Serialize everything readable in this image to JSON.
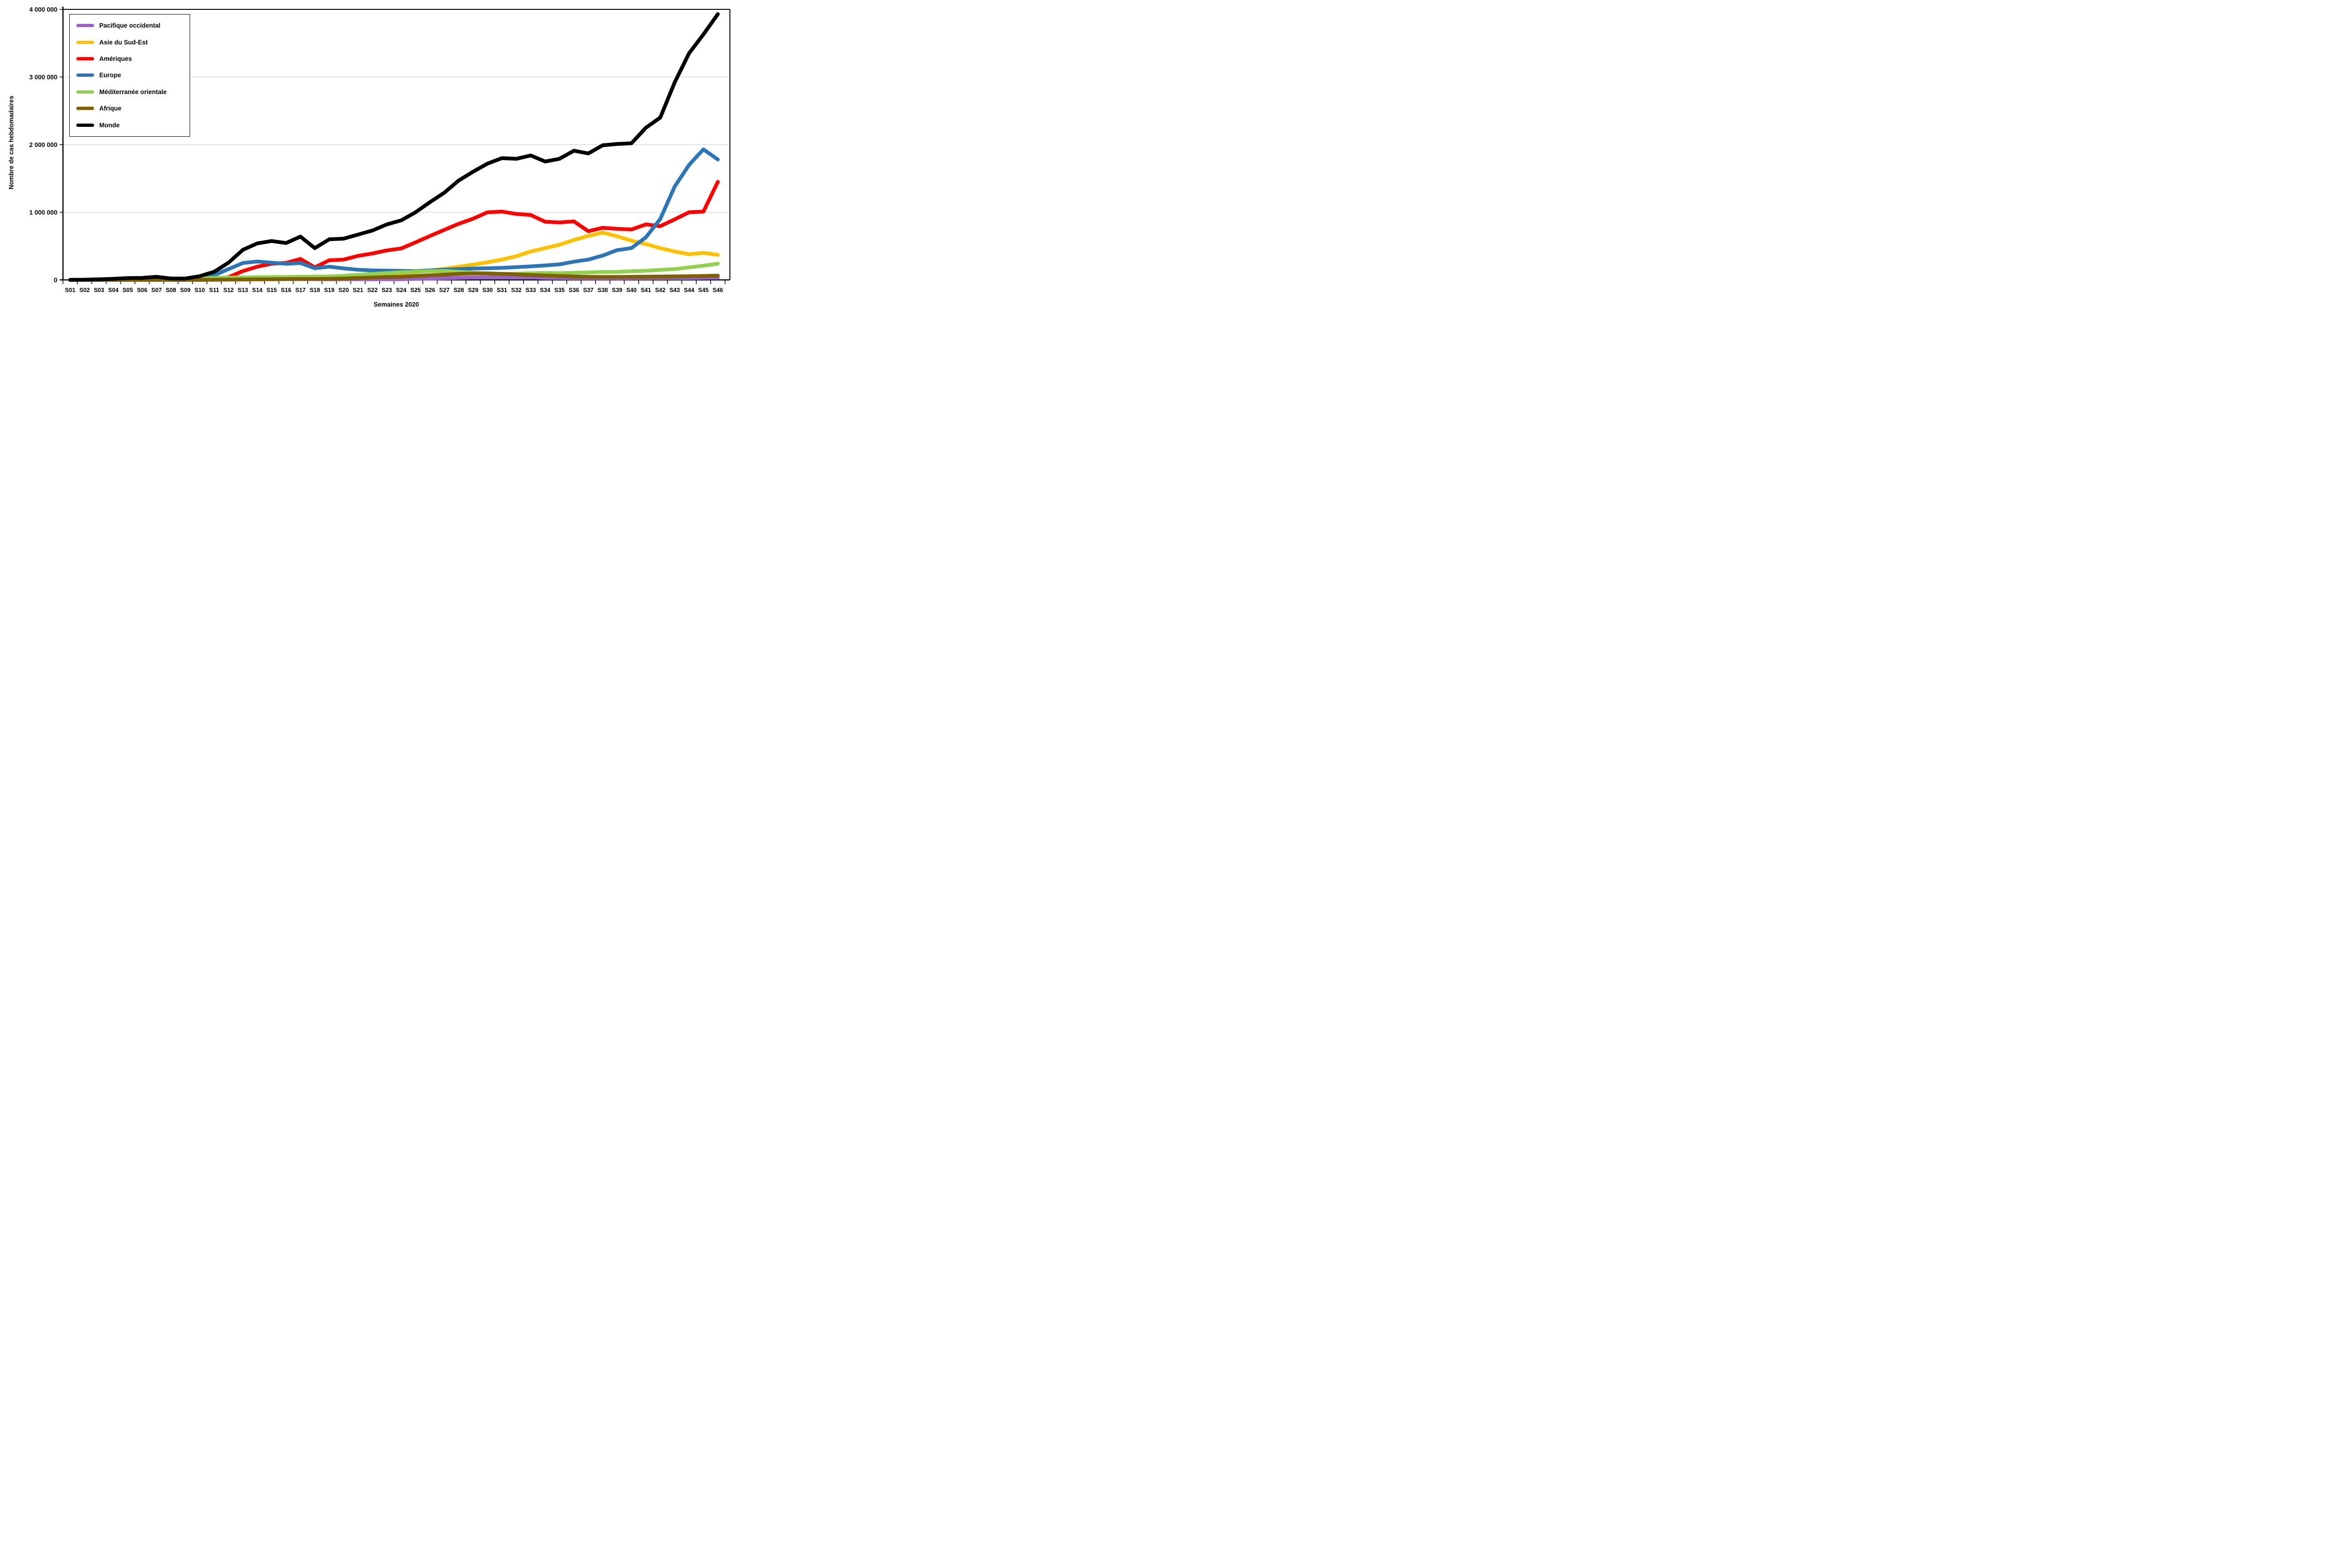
{
  "chart_data": {
    "type": "line",
    "title": "",
    "xlabel": "Semaines 2020",
    "ylabel": "Nombre de cas hebdomadaires",
    "x_categories": [
      "S01",
      "S02",
      "S03",
      "S04",
      "S05",
      "S06",
      "S07",
      "S08",
      "S09",
      "S10",
      "S11",
      "S12",
      "S13",
      "S14",
      "S15",
      "S16",
      "S17",
      "S18",
      "S19",
      "S20",
      "S21",
      "S22",
      "S23",
      "S24",
      "S25",
      "S26",
      "S27",
      "S28",
      "S29",
      "S30",
      "S31",
      "S32",
      "S33",
      "S34",
      "S35",
      "S36",
      "S37",
      "S38",
      "S39",
      "S40",
      "S41",
      "S42",
      "S43",
      "S44",
      "S45",
      "S46"
    ],
    "ylim": [
      0,
      4000000
    ],
    "yticks": [
      {
        "value": 0,
        "label": "0"
      },
      {
        "value": 1000000,
        "label": "1 000 000"
      },
      {
        "value": 2000000,
        "label": "2 000 000"
      },
      {
        "value": 3000000,
        "label": "3 000 000"
      },
      {
        "value": 4000000,
        "label": "4 000 000"
      }
    ],
    "grid": "horizontal-gray",
    "legend_position": "inside-top-left",
    "series": [
      {
        "name": "Pacifique occidental",
        "color": "#9B60C9",
        "values": [
          1000,
          3000,
          8000,
          15000,
          25000,
          27000,
          44000,
          18000,
          12000,
          12000,
          12000,
          12000,
          12000,
          12000,
          12000,
          12000,
          12000,
          11000,
          10000,
          10000,
          10000,
          10000,
          10000,
          10000,
          15000,
          18000,
          25000,
          30000,
          35000,
          38000,
          38000,
          36000,
          35000,
          30000,
          28000,
          26000,
          25000,
          24000,
          24000,
          25000,
          26000,
          27000,
          28000,
          28000,
          30000,
          32000
        ]
      },
      {
        "name": "Asie du Sud-Est",
        "color": "#FFC000",
        "values": [
          0,
          0,
          0,
          0,
          0,
          1000,
          1000,
          1000,
          1000,
          2000,
          4000,
          8000,
          12000,
          15000,
          17000,
          20000,
          25000,
          28000,
          35000,
          45000,
          55000,
          65000,
          80000,
          95000,
          115000,
          140000,
          165000,
          195000,
          225000,
          260000,
          300000,
          350000,
          420000,
          470000,
          520000,
          590000,
          650000,
          700000,
          645000,
          580000,
          530000,
          470000,
          420000,
          380000,
          400000,
          370000
        ]
      },
      {
        "name": "Amériques",
        "color": "#FF0000",
        "values": [
          0,
          0,
          0,
          0,
          0,
          0,
          0,
          0,
          1000,
          2000,
          6000,
          40000,
          130000,
          195000,
          240000,
          250000,
          310000,
          185000,
          290000,
          300000,
          355000,
          390000,
          435000,
          465000,
          555000,
          650000,
          740000,
          830000,
          905000,
          1000000,
          1010000,
          975000,
          960000,
          860000,
          850000,
          865000,
          720000,
          770000,
          755000,
          745000,
          820000,
          795000,
          895000,
          1000000,
          1010000,
          1450000
        ]
      },
      {
        "name": "Europe",
        "color": "#2E75B6",
        "values": [
          0,
          0,
          0,
          1000,
          1000,
          1000,
          1000,
          2000,
          10000,
          30000,
          70000,
          160000,
          250000,
          272000,
          255000,
          238000,
          250000,
          172000,
          196000,
          170000,
          150000,
          140000,
          136000,
          134000,
          130000,
          140000,
          150000,
          160000,
          168000,
          172000,
          178000,
          188000,
          200000,
          214000,
          230000,
          270000,
          300000,
          360000,
          440000,
          470000,
          630000,
          900000,
          1380000,
          1700000,
          1930000,
          1780000
        ]
      },
      {
        "name": "Méditerranée orientale",
        "color": "#92D050",
        "values": [
          0,
          0,
          0,
          0,
          0,
          0,
          1000,
          2000,
          5000,
          18000,
          30000,
          35000,
          37000,
          40000,
          42000,
          44000,
          47000,
          50000,
          50000,
          60000,
          75000,
          88000,
          100000,
          112000,
          122000,
          130000,
          132000,
          120000,
          105000,
          95000,
          90000,
          92000,
          98000,
          102000,
          100000,
          105000,
          110000,
          118000,
          120000,
          128000,
          135000,
          148000,
          160000,
          185000,
          210000,
          240000
        ]
      },
      {
        "name": "Afrique",
        "color": "#7F6000",
        "values": [
          0,
          0,
          0,
          0,
          0,
          0,
          0,
          0,
          0,
          1000,
          2000,
          4000,
          6000,
          8000,
          10000,
          12000,
          13000,
          14000,
          15000,
          20000,
          28000,
          35000,
          42000,
          48000,
          58000,
          68000,
          78000,
          88000,
          95000,
          96000,
          88000,
          80000,
          72000,
          65000,
          58000,
          50000,
          46000,
          44000,
          44000,
          46000,
          48000,
          50000,
          52000,
          55000,
          58000,
          62000
        ]
      },
      {
        "name": "Monde",
        "color": "#000000",
        "values": [
          1000,
          3000,
          9000,
          16000,
          27000,
          30000,
          46000,
          21000,
          20000,
          55000,
          120000,
          255000,
          445000,
          540000,
          575000,
          545000,
          640000,
          470000,
          600000,
          610000,
          670000,
          730000,
          820000,
          880000,
          1000000,
          1150000,
          1290000,
          1470000,
          1600000,
          1720000,
          1800000,
          1790000,
          1840000,
          1750000,
          1790000,
          1910000,
          1870000,
          1990000,
          2010000,
          2020000,
          2250000,
          2400000,
          2920000,
          3350000,
          3630000,
          3930000
        ]
      }
    ],
    "style": {
      "line_width": 8,
      "grid_color": "#D9D9D9",
      "axis_color": "#000000",
      "plot_border": "black-top-right"
    }
  },
  "axes": {
    "x_title": "Semaines 2020",
    "y_title": "Nombre de cas hebdomadaires"
  }
}
